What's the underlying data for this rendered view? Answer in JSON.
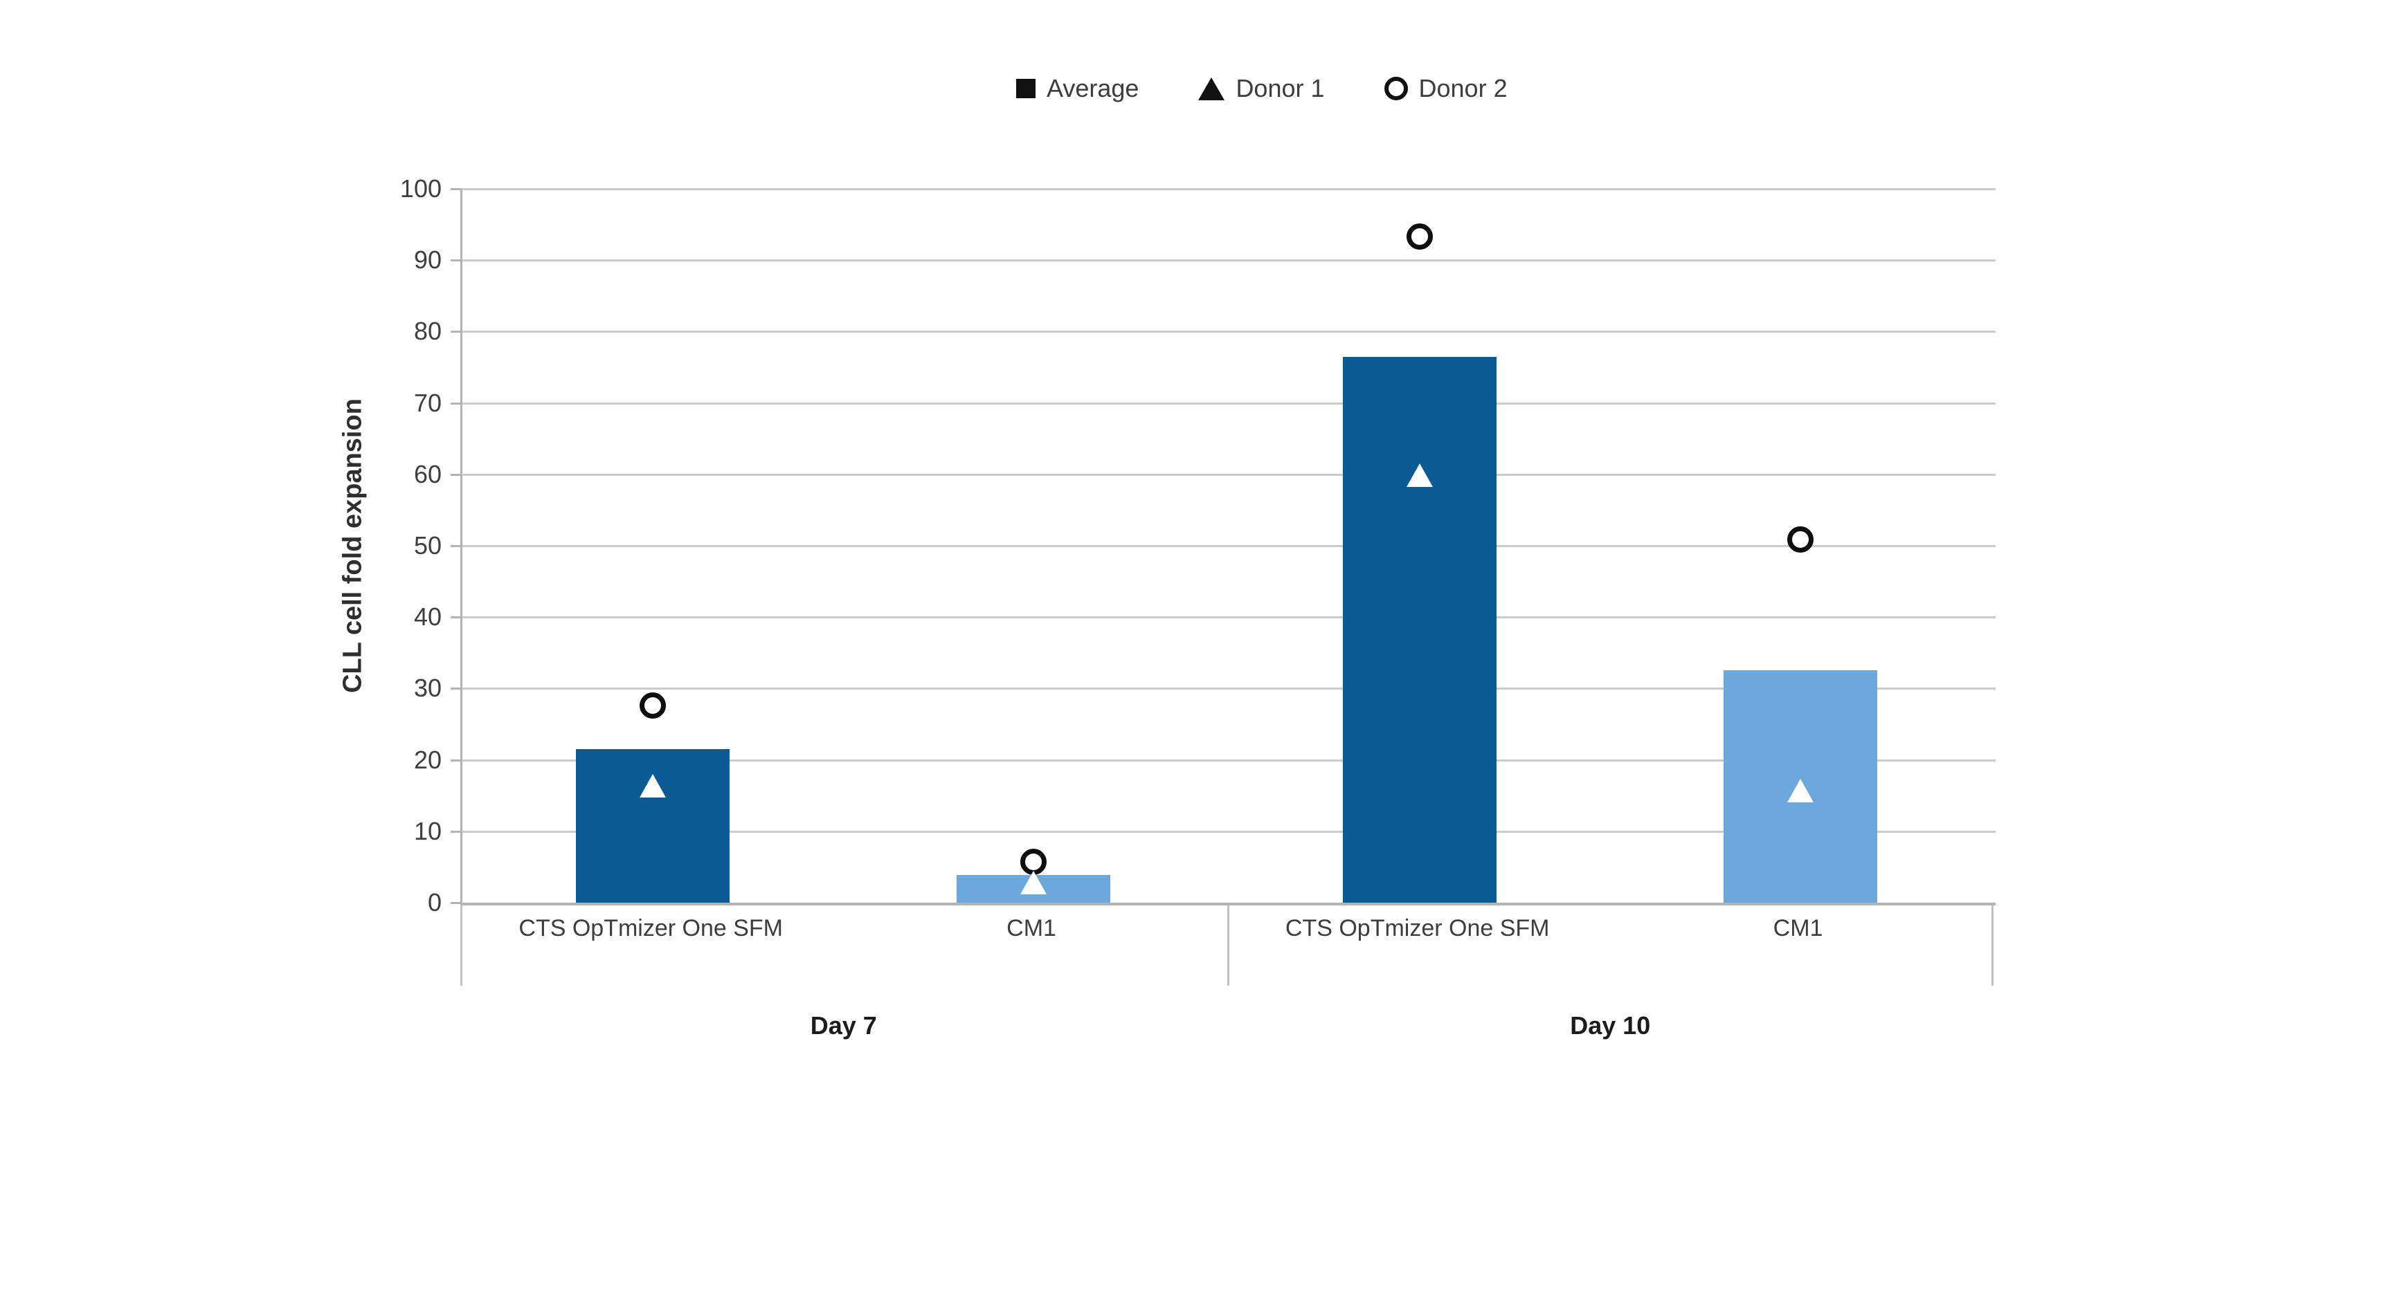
{
  "chart_data": {
    "type": "bar",
    "title": "",
    "ylabel": "CLL cell fold expansion",
    "xlabel": "",
    "ylim": [
      0,
      100
    ],
    "yticks": [
      0,
      10,
      20,
      30,
      40,
      50,
      60,
      70,
      80,
      90,
      100
    ],
    "grid": "horizontal",
    "legend_position": "top-center",
    "series_note": "bars = Average fold expansion; white triangle markers = Donor 1; open circle markers = Donor 2",
    "legend": [
      {
        "label": "Average",
        "marker": "filled-square",
        "color": "#111111"
      },
      {
        "label": "Donor 1",
        "marker": "filled-triangle",
        "color": "#111111"
      },
      {
        "label": "Donor 2",
        "marker": "open-circle",
        "color": "#111111"
      }
    ],
    "groups": [
      {
        "label": "Day 7",
        "bars": [
          {
            "category": "CTS OpTmizer One SFM",
            "bar_color": "#0B5A94",
            "average": 21.5,
            "donor1": 16.4,
            "donor2": 27.6
          },
          {
            "category": "CM1",
            "bar_color": "#6DA8DC",
            "average": 3.9,
            "donor1": 2.8,
            "donor2": 5.7
          }
        ]
      },
      {
        "label": "Day 10",
        "bars": [
          {
            "category": "CTS OpTmizer One SFM",
            "bar_color": "#0B5A94",
            "average": 76.5,
            "donor1": 59.9,
            "donor2": 93.3
          },
          {
            "category": "CM1",
            "bar_color": "#6DA8DC",
            "average": 32.6,
            "donor1": 15.7,
            "donor2": 50.9
          }
        ]
      }
    ],
    "colors": {
      "dark_blue": "#0B5A94",
      "light_blue": "#6DA8DC",
      "gridline": "#cccccc",
      "axis": "#b4b4b4",
      "tick_text": "#3f3f3f",
      "day_text": "#1c1c1c",
      "marker_stroke": "#0e0e0e",
      "marker_fill": "#ffffff"
    }
  }
}
